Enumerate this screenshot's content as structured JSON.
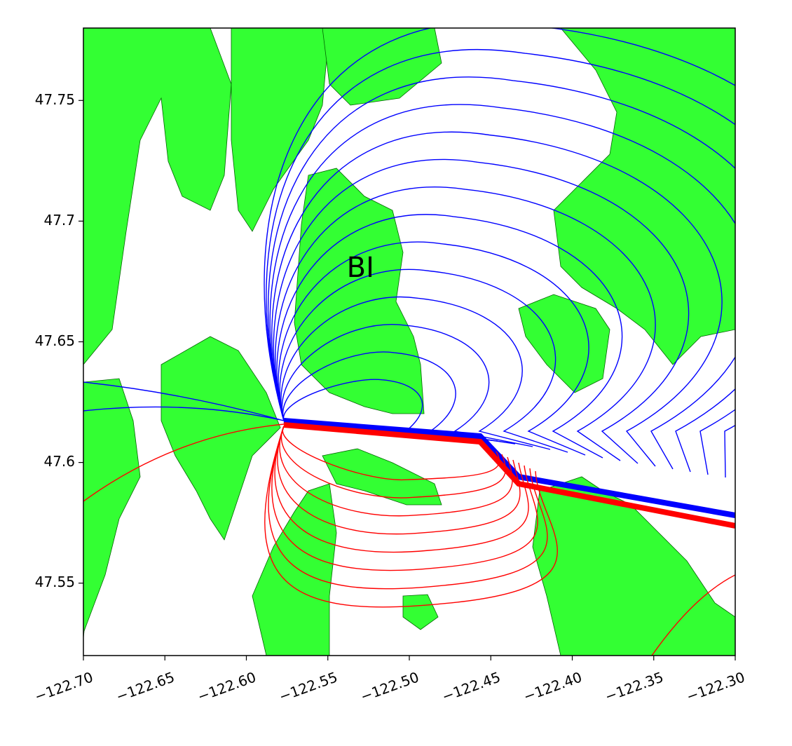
{
  "chart_data": {
    "type": "contour",
    "xlim": [
      -122.7,
      -122.3
    ],
    "ylim": [
      47.52,
      47.78
    ],
    "xticks": [
      {
        "value": -122.7,
        "label": "−122.70"
      },
      {
        "value": -122.65,
        "label": "−122.65"
      },
      {
        "value": -122.6,
        "label": "−122.60"
      },
      {
        "value": -122.55,
        "label": "−122.55"
      },
      {
        "value": -122.5,
        "label": "−122.50"
      },
      {
        "value": -122.45,
        "label": "−122.45"
      },
      {
        "value": -122.4,
        "label": "−122.40"
      },
      {
        "value": -122.35,
        "label": "−122.35"
      },
      {
        "value": -122.3,
        "label": "−122.30"
      }
    ],
    "yticks": [
      47.55,
      47.6,
      47.65,
      47.7,
      47.75
    ],
    "annotation": {
      "text": "BI",
      "x": -122.53,
      "y": 47.68
    },
    "land_color": "#33ff33",
    "positive_color": "#0000ff",
    "negative_color": "#ff0000"
  }
}
